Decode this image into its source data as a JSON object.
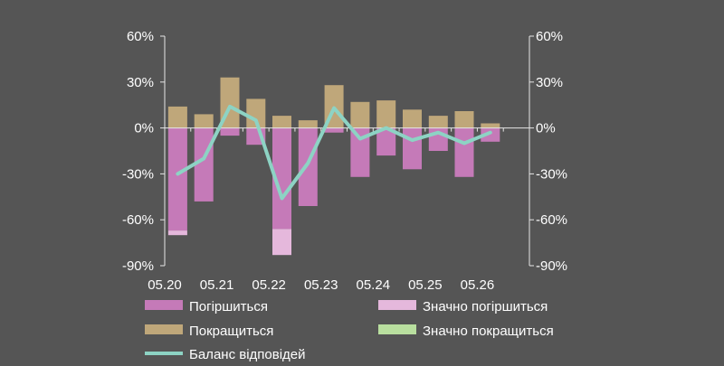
{
  "chart_data": {
    "type": "bar",
    "stacked": true,
    "x_ticks": [
      "05.20",
      "05.21",
      "05.22",
      "05.23",
      "05.24",
      "05.25",
      "05.26"
    ],
    "x_tick_positions": [
      0,
      2,
      4,
      6,
      8,
      10,
      12
    ],
    "n_periods": 14,
    "y_left": {
      "ticks": [
        "60%",
        "30%",
        "0%",
        "-30%",
        "-60%",
        "-90%"
      ],
      "ylim": [
        -90,
        60
      ]
    },
    "y_right": {
      "ticks": [
        "60%",
        "30%",
        "0%",
        "-30%",
        "-60%",
        "-90%"
      ],
      "ylim": [
        -90,
        60
      ]
    },
    "grid": false,
    "legend_position": "bottom",
    "series": [
      {
        "name": "Погіршиться",
        "kind": "bar",
        "color": "#c57ab8",
        "values": [
          -67,
          -48,
          -5,
          -11,
          -66,
          -51,
          -3,
          -32,
          -18,
          -27,
          -15,
          -32,
          -9,
          0
        ]
      },
      {
        "name": "Значно погіршиться",
        "kind": "bar",
        "color": "#e5b8dc",
        "values": [
          -3,
          0,
          0,
          0,
          -17,
          0,
          0,
          0,
          0,
          0,
          0,
          0,
          0,
          0
        ]
      },
      {
        "name": "Покращиться",
        "kind": "bar",
        "color": "#bfa77a",
        "values": [
          14,
          9,
          33,
          19,
          8,
          5,
          28,
          17,
          18,
          12,
          8,
          11,
          3,
          0
        ]
      },
      {
        "name": "Значно покращиться",
        "kind": "bar",
        "color": "#b9df9f",
        "values": [
          0,
          0,
          0,
          0,
          0,
          0,
          0,
          0,
          0,
          0,
          0,
          0,
          0,
          0
        ]
      },
      {
        "name": "Баланс відповідей",
        "kind": "line",
        "color": "#8dd3c4",
        "values": [
          -30,
          -20,
          14,
          5,
          -46,
          -23,
          13,
          -7,
          0,
          -8,
          -3,
          -10,
          -3
        ]
      }
    ]
  }
}
